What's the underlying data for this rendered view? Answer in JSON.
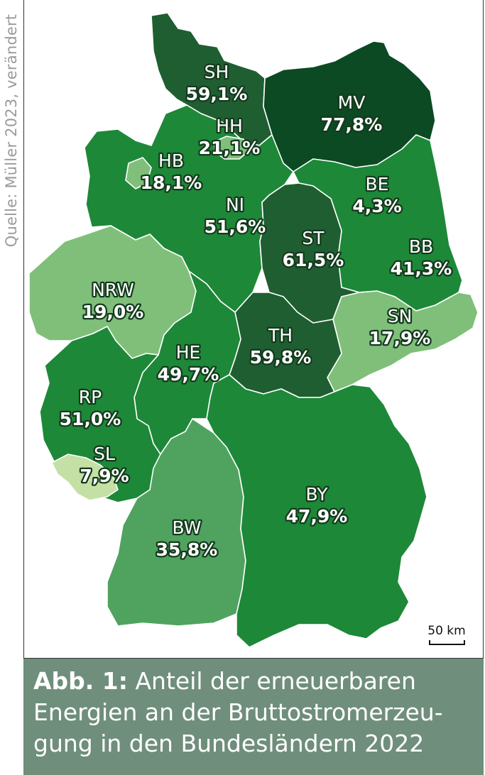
{
  "source": "Quelle: Müller 2023, verändert",
  "caption": {
    "prefix": "Abb. 1:",
    "line1": "Anteil der erneuerbaren",
    "line2": "Energien an der Bruttostromerzeu-",
    "line3": "gung in den Bundesländern 2022"
  },
  "scale_bar": "50 km",
  "colors": {
    "very_dark": "#0b4a23",
    "dark": "#1f5e31",
    "medium": "#1d8838",
    "light": "#4fa35f",
    "pale": "#7fbf7a",
    "very_pale": "#c4e0a4"
  },
  "states": [
    {
      "code": "SH",
      "value": "59,1%",
      "share": 59.1,
      "shade": "dark"
    },
    {
      "code": "HH",
      "value": "21,1%",
      "share": 21.1,
      "shade": "pale"
    },
    {
      "code": "MV",
      "value": "77,8%",
      "share": 77.8,
      "shade": "very_dark"
    },
    {
      "code": "HB",
      "value": "18,1%",
      "share": 18.1,
      "shade": "pale"
    },
    {
      "code": "NI",
      "value": "51,6%",
      "share": 51.6,
      "shade": "medium"
    },
    {
      "code": "BE",
      "value": "4,3%",
      "share": 4.3,
      "shade": "very_pale"
    },
    {
      "code": "ST",
      "value": "61,5%",
      "share": 61.5,
      "shade": "dark"
    },
    {
      "code": "BB",
      "value": "41,3%",
      "share": 41.3,
      "shade": "medium"
    },
    {
      "code": "NRW",
      "value": "19,0%",
      "share": 19.0,
      "shade": "pale"
    },
    {
      "code": "SN",
      "value": "17,9%",
      "share": 17.9,
      "shade": "pale"
    },
    {
      "code": "TH",
      "value": "59,8%",
      "share": 59.8,
      "shade": "dark"
    },
    {
      "code": "HE",
      "value": "49,7%",
      "share": 49.7,
      "shade": "medium"
    },
    {
      "code": "RP",
      "value": "51,0%",
      "share": 51.0,
      "shade": "medium"
    },
    {
      "code": "SL",
      "value": "7,9%",
      "share": 7.9,
      "shade": "very_pale"
    },
    {
      "code": "BY",
      "value": "47,9%",
      "share": 47.9,
      "shade": "medium"
    },
    {
      "code": "BW",
      "value": "35,8%",
      "share": 35.8,
      "shade": "light"
    }
  ]
}
